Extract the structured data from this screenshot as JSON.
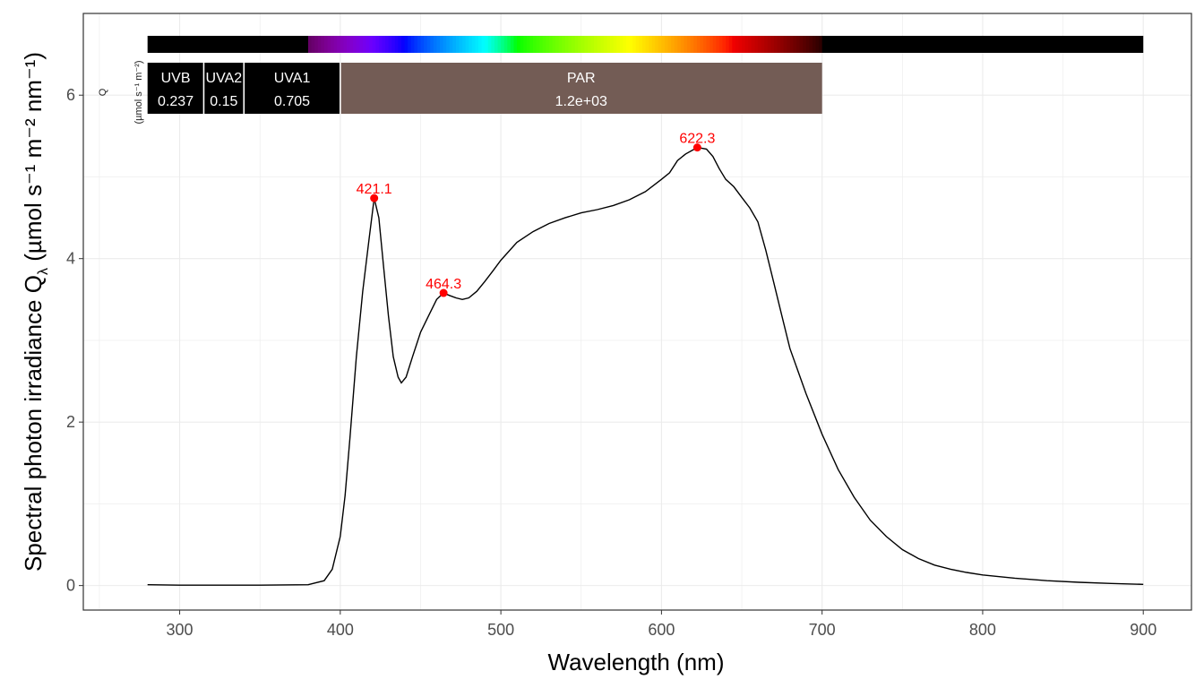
{
  "chart_data": {
    "type": "line",
    "xlabel": "Wavelength (nm)",
    "ylabel": "Spectral  photon  irradiance  Q",
    "ylabel_unit": "(µmol s⁻¹ m⁻² nm⁻¹)",
    "xlim": [
      240,
      930
    ],
    "ylim": [
      -0.3,
      7.0
    ],
    "x_ticks": [
      300,
      400,
      500,
      600,
      700,
      800,
      900
    ],
    "y_ticks": [
      0,
      2,
      4,
      6
    ],
    "grid": true,
    "series": [
      {
        "points": [
          [
            280,
            0.01
          ],
          [
            300,
            0.005
          ],
          [
            350,
            0.005
          ],
          [
            380,
            0.01
          ],
          [
            390,
            0.06
          ],
          [
            395,
            0.2
          ],
          [
            400,
            0.6
          ],
          [
            403,
            1.1
          ],
          [
            406,
            1.8
          ],
          [
            410,
            2.8
          ],
          [
            414,
            3.6
          ],
          [
            418,
            4.25
          ],
          [
            421.1,
            4.74
          ],
          [
            424,
            4.5
          ],
          [
            427,
            3.9
          ],
          [
            430,
            3.3
          ],
          [
            433,
            2.8
          ],
          [
            436,
            2.55
          ],
          [
            438,
            2.48
          ],
          [
            441,
            2.55
          ],
          [
            445,
            2.8
          ],
          [
            450,
            3.1
          ],
          [
            455,
            3.3
          ],
          [
            460,
            3.5
          ],
          [
            464.3,
            3.58
          ],
          [
            468,
            3.55
          ],
          [
            472,
            3.52
          ],
          [
            476,
            3.5
          ],
          [
            480,
            3.52
          ],
          [
            485,
            3.6
          ],
          [
            490,
            3.72
          ],
          [
            495,
            3.85
          ],
          [
            500,
            3.98
          ],
          [
            510,
            4.2
          ],
          [
            520,
            4.33
          ],
          [
            530,
            4.43
          ],
          [
            540,
            4.5
          ],
          [
            550,
            4.56
          ],
          [
            560,
            4.6
          ],
          [
            570,
            4.65
          ],
          [
            580,
            4.72
          ],
          [
            590,
            4.82
          ],
          [
            600,
            4.97
          ],
          [
            605,
            5.05
          ],
          [
            610,
            5.2
          ],
          [
            615,
            5.28
          ],
          [
            622.3,
            5.36
          ],
          [
            628,
            5.34
          ],
          [
            632,
            5.25
          ],
          [
            636,
            5.1
          ],
          [
            640,
            4.97
          ],
          [
            645,
            4.88
          ],
          [
            650,
            4.75
          ],
          [
            655,
            4.62
          ],
          [
            660,
            4.45
          ],
          [
            665,
            4.1
          ],
          [
            670,
            3.7
          ],
          [
            675,
            3.3
          ],
          [
            680,
            2.9
          ],
          [
            690,
            2.35
          ],
          [
            700,
            1.85
          ],
          [
            710,
            1.42
          ],
          [
            720,
            1.08
          ],
          [
            730,
            0.8
          ],
          [
            740,
            0.6
          ],
          [
            750,
            0.44
          ],
          [
            760,
            0.33
          ],
          [
            770,
            0.25
          ],
          [
            780,
            0.2
          ],
          [
            790,
            0.16
          ],
          [
            800,
            0.13
          ],
          [
            820,
            0.09
          ],
          [
            840,
            0.06
          ],
          [
            860,
            0.04
          ],
          [
            880,
            0.025
          ],
          [
            900,
            0.015
          ]
        ]
      }
    ],
    "peaks": [
      {
        "x": 421.1,
        "y": 4.74,
        "label": "421.1"
      },
      {
        "x": 464.3,
        "y": 3.58,
        "label": "464.3"
      },
      {
        "x": 622.3,
        "y": 5.36,
        "label": "622.3"
      }
    ],
    "peak_color": "#ff0000",
    "line_color": "#000000",
    "spectrum_bar": {
      "from": 280,
      "to": 900
    },
    "wavebands": [
      {
        "name": "UVB",
        "from": 280,
        "to": 315,
        "value": "0.237",
        "color": "#000000"
      },
      {
        "name": "UVA2",
        "from": 315,
        "to": 340,
        "value": "0.15",
        "color": "#000000"
      },
      {
        "name": "UVA1",
        "from": 340,
        "to": 400,
        "value": "0.705",
        "color": "#000000"
      },
      {
        "name": "PAR",
        "from": 400,
        "to": 700,
        "value": "1.2e+03",
        "color": "#735c55"
      }
    ],
    "waveband_qty_label": "Q",
    "waveband_unit_label": "(µmol s⁻¹ m⁻²)"
  }
}
